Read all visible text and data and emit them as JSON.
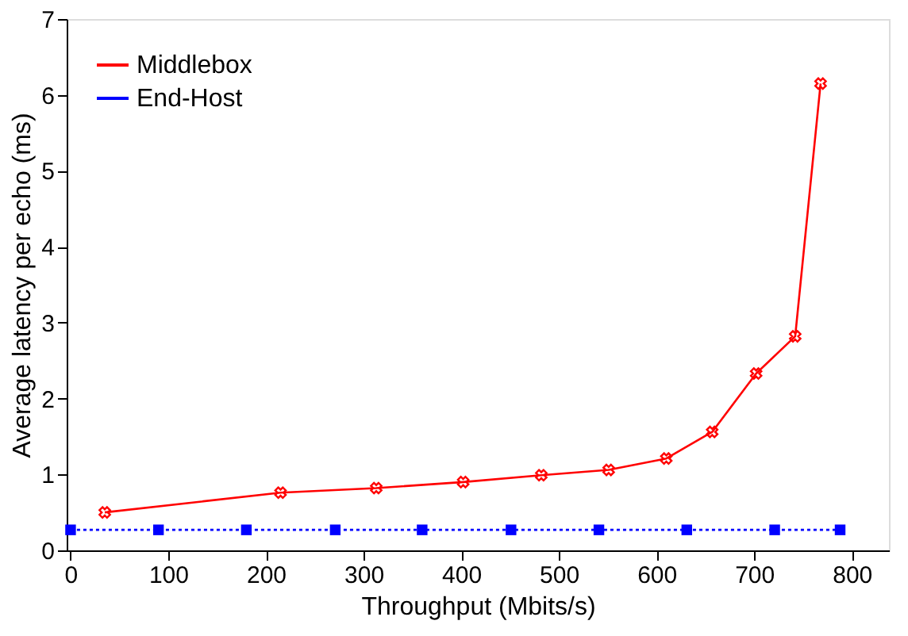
{
  "chart_data": {
    "type": "line",
    "xlabel": "Throughput (Mbits/s)",
    "ylabel": "Average latency per echo (ms)",
    "xlim": [
      -4,
      838
    ],
    "ylim": [
      0,
      7
    ],
    "xticks": [
      0,
      100,
      200,
      300,
      400,
      500,
      600,
      700,
      800
    ],
    "yticks": [
      0,
      1,
      2,
      3,
      4,
      5,
      6,
      7
    ],
    "grid": false,
    "legend": "top left",
    "series": [
      {
        "name": "Middlebox",
        "color": "#ff0000",
        "marker": "cross",
        "line_style": "solid",
        "x": [
          35,
          215,
          313,
          402,
          482,
          551,
          610,
          657,
          702,
          742,
          768
        ],
        "values": [
          0.5,
          0.76,
          0.82,
          0.9,
          0.99,
          1.06,
          1.21,
          1.56,
          2.33,
          2.82,
          6.15
        ]
      },
      {
        "name": "End-Host",
        "color": "#0000ff",
        "marker": "square",
        "line_style": "dotted",
        "x": [
          0,
          90,
          180,
          271,
          360,
          451,
          541,
          631,
          721,
          788
        ],
        "values": [
          0.27,
          0.27,
          0.27,
          0.27,
          0.27,
          0.27,
          0.27,
          0.27,
          0.27,
          0.27
        ]
      }
    ]
  }
}
